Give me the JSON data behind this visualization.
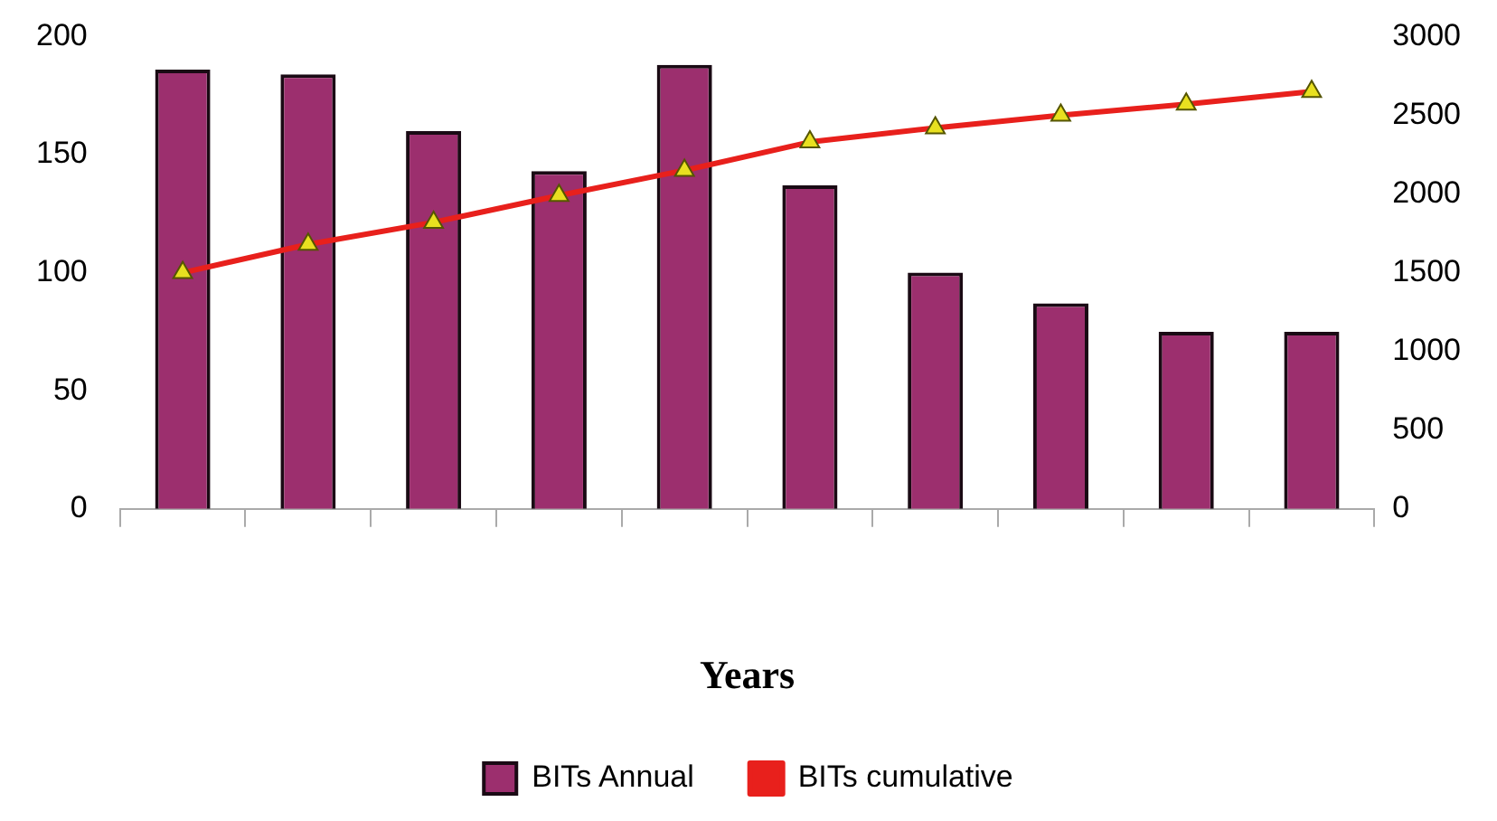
{
  "chart_data": {
    "type": "bar",
    "xlabel": "Years",
    "categories": [
      null,
      null,
      null,
      null,
      null,
      null,
      null,
      null,
      null,
      null
    ],
    "series": [
      {
        "name": "BITs Annual",
        "color": "#9c2f6e",
        "values": [
          186,
          184,
          160,
          143,
          188,
          137,
          100,
          87,
          75,
          75
        ]
      },
      {
        "name": "BITs cumulative",
        "type": "line",
        "axis": "y2",
        "color": "#e8201c",
        "values": [
          1500,
          1680,
          1820,
          1990,
          2150,
          2330,
          2420,
          2500,
          2570,
          2650
        ]
      }
    ],
    "ylim": [
      0,
      200
    ],
    "yticks": [
      0,
      50,
      100,
      150,
      200
    ],
    "y2lim": [
      0,
      3000
    ],
    "y2ticks": [
      0,
      500,
      1000,
      1500,
      2000,
      2500,
      3000
    ],
    "grid": false,
    "legend": "bottom",
    "marker": "triangle",
    "line_style": "solid"
  }
}
